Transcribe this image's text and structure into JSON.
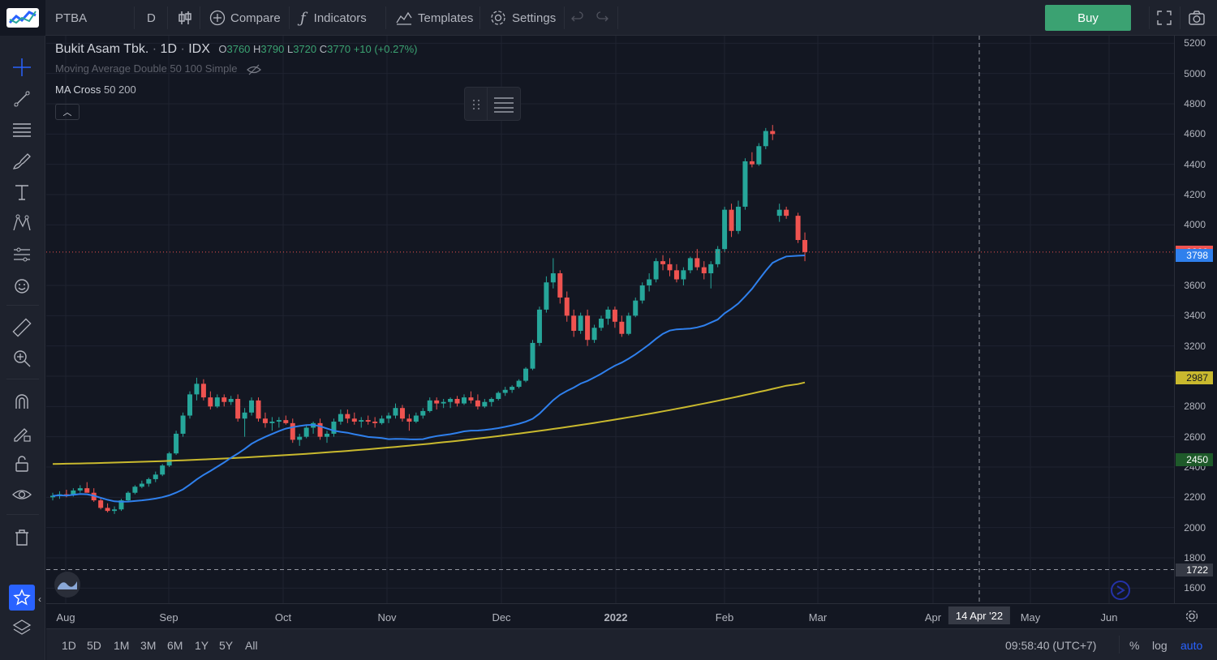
{
  "toolbar": {
    "symbol": "PTBA",
    "interval": "D",
    "compare_label": "Compare",
    "indicators_label": "Indicators",
    "templates_label": "Templates",
    "settings_label": "Settings",
    "buy_label": "Buy"
  },
  "legend": {
    "name": "Bukit Asam Tbk.",
    "interval": "1D",
    "exchange": "IDX",
    "o_key": "O",
    "o_val": "3760",
    "h_key": "H",
    "h_val": "3790",
    "l_key": "L",
    "l_val": "3720",
    "c_key": "C",
    "c_val": "3770",
    "change": "+10 (+0.27%)",
    "study1": "Moving Average Double 50 100 Simple",
    "study2_name": "MA Cross",
    "study2_params": "50 200"
  },
  "price_axis": {
    "ticks": [
      "5200",
      "5000",
      "4800",
      "4600",
      "4400",
      "4200",
      "4000",
      "3600",
      "3400",
      "3200",
      "3000",
      "2800",
      "2600",
      "2400",
      "2200",
      "2000",
      "1800",
      "1600"
    ],
    "last_price": "3820",
    "ma_fast": "3798",
    "ma_slow": "2987",
    "level_low": "2450",
    "crosshair_price": "1722"
  },
  "time_axis": {
    "labels": [
      "Aug",
      "Sep",
      "Oct",
      "Nov",
      "Dec",
      "2022",
      "Feb",
      "Mar",
      "Apr",
      "May",
      "Jun"
    ],
    "crosshair_date": "14 Apr '22"
  },
  "bottom": {
    "ranges": [
      "1D",
      "5D",
      "1M",
      "3M",
      "6M",
      "1Y",
      "5Y",
      "All"
    ],
    "clock": "09:58:40 (UTC+7)",
    "percent": "%",
    "log": "log",
    "auto": "auto"
  },
  "colors": {
    "up": "#26a69a",
    "down": "#ef5350",
    "ma_fast": "#2f80ed",
    "ma_slow": "#c9b92e",
    "buy": "#3ba272",
    "background": "#131722"
  },
  "chart_data": {
    "type": "candlestick",
    "series": [
      {
        "name": "PTBA",
        "values": [
          [
            2200,
            2230,
            2180,
            2210
          ],
          [
            2210,
            2240,
            2190,
            2220
          ],
          [
            2220,
            2250,
            2200,
            2215
          ],
          [
            2215,
            2260,
            2205,
            2245
          ],
          [
            2245,
            2280,
            2230,
            2260
          ],
          [
            2260,
            2300,
            2240,
            2230
          ],
          [
            2230,
            2260,
            2170,
            2180
          ],
          [
            2180,
            2200,
            2120,
            2130
          ],
          [
            2130,
            2160,
            2100,
            2110
          ],
          [
            2110,
            2140,
            2090,
            2120
          ],
          [
            2120,
            2190,
            2110,
            2180
          ],
          [
            2180,
            2240,
            2170,
            2230
          ],
          [
            2230,
            2280,
            2220,
            2270
          ],
          [
            2270,
            2310,
            2260,
            2290
          ],
          [
            2290,
            2330,
            2270,
            2320
          ],
          [
            2320,
            2370,
            2300,
            2350
          ],
          [
            2350,
            2420,
            2340,
            2410
          ],
          [
            2410,
            2500,
            2400,
            2490
          ],
          [
            2490,
            2640,
            2480,
            2620
          ],
          [
            2620,
            2760,
            2600,
            2740
          ],
          [
            2740,
            2900,
            2720,
            2880
          ],
          [
            2880,
            2990,
            2840,
            2950
          ],
          [
            2950,
            2980,
            2840,
            2860
          ],
          [
            2860,
            2900,
            2780,
            2800
          ],
          [
            2800,
            2880,
            2790,
            2860
          ],
          [
            2860,
            2880,
            2800,
            2830
          ],
          [
            2830,
            2870,
            2810,
            2850
          ],
          [
            2850,
            2880,
            2700,
            2720
          ],
          [
            2720,
            2790,
            2600,
            2760
          ],
          [
            2760,
            2860,
            2740,
            2840
          ],
          [
            2840,
            2860,
            2700,
            2720
          ],
          [
            2720,
            2760,
            2660,
            2690
          ],
          [
            2690,
            2730,
            2640,
            2700
          ],
          [
            2700,
            2730,
            2660,
            2710
          ],
          [
            2710,
            2740,
            2680,
            2690
          ],
          [
            2690,
            2720,
            2560,
            2580
          ],
          [
            2580,
            2620,
            2540,
            2600
          ],
          [
            2600,
            2680,
            2590,
            2660
          ],
          [
            2660,
            2700,
            2620,
            2690
          ],
          [
            2690,
            2720,
            2580,
            2600
          ],
          [
            2600,
            2640,
            2560,
            2620
          ],
          [
            2620,
            2720,
            2600,
            2700
          ],
          [
            2700,
            2780,
            2680,
            2750
          ],
          [
            2750,
            2780,
            2690,
            2720
          ],
          [
            2720,
            2760,
            2680,
            2700
          ],
          [
            2700,
            2730,
            2660,
            2710
          ],
          [
            2710,
            2740,
            2680,
            2700
          ],
          [
            2700,
            2730,
            2660,
            2690
          ],
          [
            2690,
            2740,
            2680,
            2720
          ],
          [
            2720,
            2760,
            2690,
            2740
          ],
          [
            2740,
            2820,
            2720,
            2790
          ],
          [
            2790,
            2810,
            2700,
            2720
          ],
          [
            2720,
            2750,
            2640,
            2700
          ],
          [
            2700,
            2760,
            2690,
            2740
          ],
          [
            2740,
            2790,
            2720,
            2770
          ],
          [
            2770,
            2860,
            2760,
            2840
          ],
          [
            2840,
            2860,
            2780,
            2820
          ],
          [
            2820,
            2850,
            2790,
            2830
          ],
          [
            2830,
            2860,
            2790,
            2850
          ],
          [
            2850,
            2870,
            2800,
            2820
          ],
          [
            2820,
            2880,
            2810,
            2860
          ],
          [
            2860,
            2900,
            2820,
            2840
          ],
          [
            2840,
            2880,
            2780,
            2800
          ],
          [
            2800,
            2850,
            2790,
            2830
          ],
          [
            2830,
            2860,
            2800,
            2850
          ],
          [
            2850,
            2900,
            2840,
            2890
          ],
          [
            2890,
            2930,
            2870,
            2910
          ],
          [
            2910,
            2940,
            2890,
            2930
          ],
          [
            2930,
            2980,
            2920,
            2970
          ],
          [
            2970,
            3060,
            2960,
            3050
          ],
          [
            3050,
            3240,
            3040,
            3220
          ],
          [
            3220,
            3460,
            3200,
            3440
          ],
          [
            3440,
            3660,
            3420,
            3620
          ],
          [
            3620,
            3780,
            3580,
            3680
          ],
          [
            3680,
            3700,
            3480,
            3520
          ],
          [
            3520,
            3560,
            3360,
            3400
          ],
          [
            3400,
            3440,
            3260,
            3300
          ],
          [
            3300,
            3420,
            3280,
            3400
          ],
          [
            3400,
            3440,
            3200,
            3240
          ],
          [
            3240,
            3340,
            3220,
            3320
          ],
          [
            3320,
            3400,
            3300,
            3380
          ],
          [
            3380,
            3460,
            3340,
            3440
          ],
          [
            3440,
            3460,
            3320,
            3360
          ],
          [
            3360,
            3400,
            3260,
            3280
          ],
          [
            3280,
            3420,
            3270,
            3400
          ],
          [
            3400,
            3520,
            3390,
            3500
          ],
          [
            3500,
            3620,
            3480,
            3600
          ],
          [
            3600,
            3680,
            3560,
            3640
          ],
          [
            3640,
            3780,
            3620,
            3760
          ],
          [
            3760,
            3800,
            3700,
            3740
          ],
          [
            3740,
            3780,
            3660,
            3700
          ],
          [
            3700,
            3740,
            3620,
            3640
          ],
          [
            3640,
            3720,
            3600,
            3700
          ],
          [
            3700,
            3790,
            3680,
            3780
          ],
          [
            3780,
            3840,
            3700,
            3720
          ],
          [
            3720,
            3760,
            3640,
            3680
          ],
          [
            3680,
            3760,
            3580,
            3740
          ],
          [
            3740,
            3860,
            3720,
            3840
          ],
          [
            3840,
            4120,
            3820,
            4100
          ],
          [
            4100,
            4140,
            3920,
            3960
          ],
          [
            3960,
            4160,
            3940,
            4120
          ],
          [
            4120,
            4440,
            4100,
            4420
          ],
          [
            4420,
            4480,
            4380,
            4400
          ],
          [
            4400,
            4540,
            4390,
            4520
          ],
          [
            4520,
            4640,
            4500,
            4620
          ],
          [
            4620,
            4660,
            4560,
            4600
          ],
          [
            4060,
            4140,
            4020,
            4100
          ],
          [
            4100,
            4120,
            4040,
            4060
          ],
          [
            4060,
            4080,
            3880,
            3900
          ],
          [
            3900,
            3950,
            3760,
            3820
          ]
        ]
      }
    ],
    "ma_fast_last": 3798,
    "ma_slow_last": 2987,
    "ylim": [
      1500,
      5250
    ]
  }
}
